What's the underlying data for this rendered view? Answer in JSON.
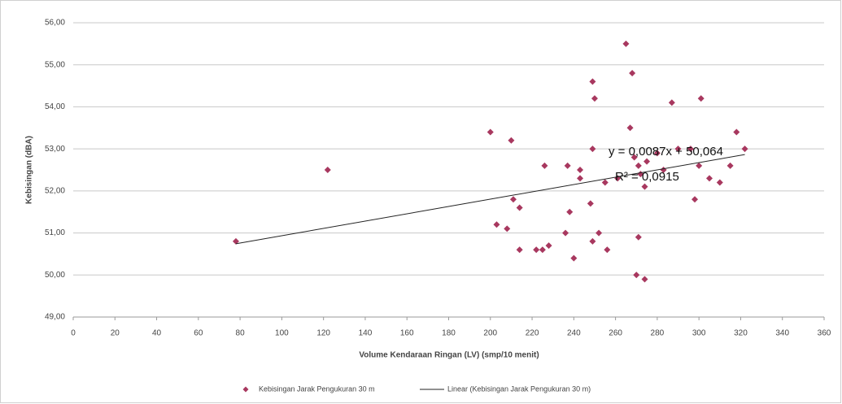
{
  "chart_data": {
    "type": "scatter",
    "x_label": "Volume Kendaraan Ringan (LV) (smp/10 menit)",
    "y_label": "Kebisingan (dBA)",
    "x": [
      78,
      122,
      200,
      210,
      203,
      208,
      211,
      214,
      214,
      226,
      222,
      225,
      228,
      236,
      237,
      238,
      240,
      243,
      243,
      248,
      249,
      249,
      250,
      249,
      252,
      255,
      256,
      261,
      265,
      267,
      268,
      269,
      270,
      271,
      271,
      272,
      274,
      274,
      275,
      280,
      283,
      287,
      290,
      296,
      298,
      301,
      300,
      305,
      310,
      315,
      318,
      322
    ],
    "series": [
      {
        "name": "Kebisingan Jarak Pengukuran 30 m",
        "color": "#a8385f",
        "values": [
          50.8,
          52.5,
          53.4,
          53.2,
          51.2,
          51.1,
          51.8,
          51.6,
          50.6,
          52.6,
          50.6,
          50.6,
          50.7,
          51.0,
          52.6,
          51.5,
          50.4,
          52.5,
          52.3,
          51.7,
          53.0,
          54.6,
          54.2,
          50.8,
          51.0,
          52.2,
          50.6,
          52.3,
          55.5,
          53.5,
          54.8,
          52.8,
          50.0,
          52.6,
          50.9,
          52.4,
          49.9,
          52.1,
          52.7,
          52.9,
          52.5,
          54.1,
          53.0,
          53.0,
          51.8,
          54.2,
          52.6,
          52.3,
          52.2,
          52.6,
          53.4,
          53.0
        ]
      }
    ],
    "trendline": {
      "name": "Linear (Kebisingan Jarak Pengukuran 30 m)",
      "slope": 0.0087,
      "intercept": 50.064,
      "equation": "y = 0,0087x + 50,064",
      "r2": "R² = 0,0915",
      "color": "#222222"
    },
    "xlim": [
      0,
      360
    ],
    "xticks": [
      0,
      20,
      40,
      60,
      80,
      100,
      120,
      140,
      160,
      180,
      200,
      220,
      240,
      260,
      280,
      300,
      320,
      340,
      360
    ],
    "ylim": [
      49,
      56
    ],
    "yticks": [
      {
        "value": 49,
        "label": "49,00"
      },
      {
        "value": 50,
        "label": "50,00"
      },
      {
        "value": 51,
        "label": "51,00"
      },
      {
        "value": 52,
        "label": "52,00"
      },
      {
        "value": 53,
        "label": "53,00"
      },
      {
        "value": 54,
        "label": "54,00"
      },
      {
        "value": 55,
        "label": "55,00"
      },
      {
        "value": 56,
        "label": "56,00"
      }
    ],
    "grid": true
  }
}
